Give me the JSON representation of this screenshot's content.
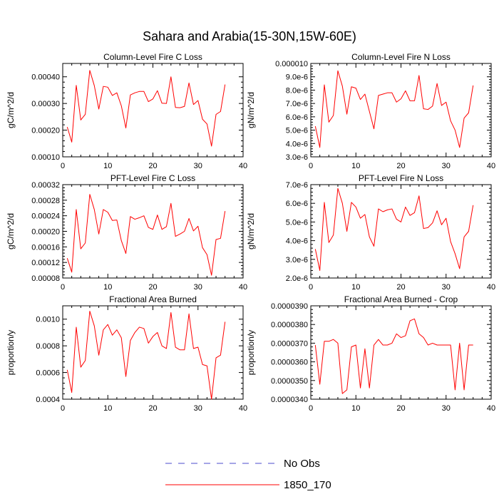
{
  "figure": {
    "title": "Sahara and Arabia(15-30N,15W-60E)"
  },
  "colors": {
    "series_line": "#ff0000",
    "no_obs_line": "#4b4bcc",
    "axis": "#000000"
  },
  "legend": {
    "placement": "bottom-center",
    "entries": [
      {
        "label": "No Obs",
        "style": "dashed",
        "color": "#4b4bcc"
      },
      {
        "label": "1850_170",
        "style": "solid",
        "color": "#ff0000"
      }
    ]
  },
  "chart_data": [
    {
      "type": "line",
      "title": "Column-Level Fire C Loss",
      "ylabel": "gC/m^2/d",
      "xlim": [
        0,
        40
      ],
      "ylim": [
        0.0001,
        0.00045
      ],
      "xticks": [
        0,
        10,
        20,
        30,
        40
      ],
      "xtick_labels": [
        "0",
        "10",
        "20",
        "30",
        "40"
      ],
      "yticks": [
        0.0001,
        0.0002,
        0.0003,
        0.0004
      ],
      "ytick_labels": [
        "0.00010",
        "0.00020",
        "0.00030",
        "0.00040"
      ],
      "series": [
        {
          "name": "1850_170",
          "x": [
            1,
            2,
            3,
            4,
            5,
            6,
            7,
            8,
            9,
            10,
            11,
            12,
            13,
            14,
            15,
            16,
            17,
            18,
            19,
            20,
            21,
            22,
            23,
            24,
            25,
            26,
            27,
            28,
            29,
            30,
            31,
            32,
            33,
            34,
            35,
            36
          ],
          "y": [
            0.000212,
            0.000155,
            0.000368,
            0.000238,
            0.000259,
            0.000424,
            0.000367,
            0.000279,
            0.000364,
            0.000361,
            0.00033,
            0.00034,
            0.000291,
            0.000208,
            0.000332,
            0.00034,
            0.000345,
            0.000345,
            0.000307,
            0.000317,
            0.000348,
            0.000301,
            0.0003,
            0.0004,
            0.000285,
            0.000284,
            0.000289,
            0.000377,
            0.000296,
            0.000311,
            0.000241,
            0.000223,
            0.00014,
            0.000259,
            0.00027,
            0.000371
          ]
        }
      ]
    },
    {
      "type": "line",
      "title": "Column-Level Fire N Loss",
      "ylabel": "gN/m^2/d",
      "xlim": [
        0,
        40
      ],
      "ylim": [
        3e-06,
        1e-05
      ],
      "xticks": [
        0,
        10,
        20,
        30,
        40
      ],
      "xtick_labels": [
        "0",
        "10",
        "20",
        "30",
        "40"
      ],
      "yticks": [
        3e-06,
        4e-06,
        5e-06,
        6e-06,
        7e-06,
        8e-06,
        9e-06,
        1e-05
      ],
      "ytick_labels": [
        "3.0e-6",
        "4.0e-6",
        "5.0e-6",
        "6.0e-6",
        "7.0e-6",
        "8.0e-6",
        "9.0e-6",
        "0.000010"
      ],
      "series": [
        {
          "name": "1850_170",
          "x": [
            1,
            2,
            3,
            4,
            5,
            6,
            7,
            8,
            9,
            10,
            11,
            12,
            13,
            14,
            15,
            16,
            17,
            18,
            19,
            20,
            21,
            22,
            23,
            24,
            25,
            26,
            27,
            28,
            29,
            30,
            31,
            32,
            33,
            34,
            35,
            36
          ],
          "y": [
            5.3e-06,
            3.7e-06,
            8.4e-06,
            5.6e-06,
            6.1e-06,
            9.45e-06,
            8.3e-06,
            6.2e-06,
            8.25e-06,
            8.15e-06,
            7.3e-06,
            7.7e-06,
            6.4e-06,
            5.1e-06,
            7.6e-06,
            7.7e-06,
            7.8e-06,
            7.8e-06,
            7.1e-06,
            7.35e-06,
            7.95e-06,
            7.2e-06,
            7.2e-06,
            9.1e-06,
            6.6e-06,
            6.55e-06,
            6.8e-06,
            8.5e-06,
            6.85e-06,
            7.1e-06,
            5.7e-06,
            5e-06,
            3.7e-06,
            5.9e-06,
            6.3e-06,
            8.35e-06
          ]
        }
      ]
    },
    {
      "type": "line",
      "title": "PFT-Level Fire C Loss",
      "ylabel": "gC/m^2/d",
      "xlim": [
        0,
        40
      ],
      "ylim": [
        8e-05,
        0.00032
      ],
      "xticks": [
        0,
        10,
        20,
        30,
        40
      ],
      "xtick_labels": [
        "0",
        "10",
        "20",
        "30",
        "40"
      ],
      "yticks": [
        8e-05,
        0.00012,
        0.00016,
        0.0002,
        0.00024,
        0.00028,
        0.00032
      ],
      "ytick_labels": [
        "0.00008",
        "0.00012",
        "0.00016",
        "0.00020",
        "0.00024",
        "0.00028",
        "0.00032"
      ],
      "series": [
        {
          "name": "1850_170",
          "x": [
            1,
            2,
            3,
            4,
            5,
            6,
            7,
            8,
            9,
            10,
            11,
            12,
            13,
            14,
            15,
            16,
            17,
            18,
            19,
            20,
            21,
            22,
            23,
            24,
            25,
            26,
            27,
            28,
            29,
            30,
            31,
            32,
            33,
            34,
            35,
            36
          ],
          "y": [
            0.000131,
            9.5e-05,
            0.000256,
            0.000155,
            0.00017,
            0.000295,
            0.000256,
            0.000193,
            0.000256,
            0.000249,
            0.000228,
            0.000229,
            0.000176,
            0.000143,
            0.000238,
            0.000231,
            0.000235,
            0.00024,
            0.00021,
            0.000205,
            0.000242,
            0.000205,
            0.000212,
            0.000272,
            0.000187,
            0.000193,
            0.0002,
            0.000233,
            0.000201,
            0.000213,
            0.000158,
            0.00014,
            8.7e-05,
            0.000179,
            0.000182,
            0.000252
          ]
        }
      ]
    },
    {
      "type": "line",
      "title": "PFT-Level Fire N Loss",
      "ylabel": "gN/m^2/d",
      "xlim": [
        0,
        40
      ],
      "ylim": [
        2e-06,
        7e-06
      ],
      "xticks": [
        0,
        10,
        20,
        30,
        40
      ],
      "xtick_labels": [
        "0",
        "10",
        "20",
        "30",
        "40"
      ],
      "yticks": [
        2e-06,
        3e-06,
        4e-06,
        5e-06,
        6e-06,
        7e-06
      ],
      "ytick_labels": [
        "2.0e-6",
        "3.0e-6",
        "4.0e-6",
        "5.0e-6",
        "6.0e-6",
        "7.0e-6"
      ],
      "series": [
        {
          "name": "1850_170",
          "x": [
            1,
            2,
            3,
            4,
            5,
            6,
            7,
            8,
            9,
            10,
            11,
            12,
            13,
            14,
            15,
            16,
            17,
            18,
            19,
            20,
            21,
            22,
            23,
            24,
            25,
            26,
            27,
            28,
            29,
            30,
            31,
            32,
            33,
            34,
            35,
            36
          ],
          "y": [
            3.55e-06,
            2.4e-06,
            6.05e-06,
            3.9e-06,
            4.3e-06,
            6.8e-06,
            6e-06,
            4.5e-06,
            6.05e-06,
            5.8e-06,
            5.2e-06,
            5.4e-06,
            4.2e-06,
            3.7e-06,
            5.7e-06,
            5.55e-06,
            5.65e-06,
            5.7e-06,
            5.15e-06,
            5e-06,
            5.8e-06,
            5.35e-06,
            5.5e-06,
            6.4e-06,
            4.65e-06,
            4.7e-06,
            4.95e-06,
            5.6e-06,
            4.85e-06,
            5.2e-06,
            3.95e-06,
            3.3e-06,
            2.5e-06,
            4.2e-06,
            4.5e-06,
            5.9e-06
          ]
        }
      ]
    },
    {
      "type": "line",
      "title": "Fractional Area Burned",
      "ylabel": "proportion/y",
      "xlim": [
        0,
        40
      ],
      "ylim": [
        0.0004,
        0.0011
      ],
      "xticks": [
        0,
        10,
        20,
        30,
        40
      ],
      "xtick_labels": [
        "0",
        "10",
        "20",
        "30",
        "40"
      ],
      "yticks": [
        0.0004,
        0.0006,
        0.0008,
        0.001
      ],
      "ytick_labels": [
        "0.0004",
        "0.0006",
        "0.0008",
        "0.0010"
      ],
      "series": [
        {
          "name": "1850_170",
          "x": [
            1,
            2,
            3,
            4,
            5,
            6,
            7,
            8,
            9,
            10,
            11,
            12,
            13,
            14,
            15,
            16,
            17,
            18,
            19,
            20,
            21,
            22,
            23,
            24,
            25,
            26,
            27,
            28,
            29,
            30,
            31,
            32,
            33,
            34,
            35,
            36
          ],
          "y": [
            0.00062,
            0.00045,
            0.00094,
            0.00064,
            0.00069,
            0.00106,
            0.00095,
            0.00073,
            0.00092,
            0.00096,
            0.00088,
            0.00092,
            0.00086,
            0.00057,
            0.00084,
            0.0009,
            0.00094,
            0.00093,
            0.00082,
            0.00087,
            0.0009,
            0.0008,
            0.00078,
            0.00105,
            0.00079,
            0.00077,
            0.00077,
            0.00104,
            0.00078,
            0.00079,
            0.00066,
            0.00065,
            0.0004,
            0.00071,
            0.00073,
            0.00098
          ]
        }
      ]
    },
    {
      "type": "line",
      "title": "Fractional Area Burned - Crop",
      "ylabel": "proportion/y",
      "xlim": [
        0,
        40
      ],
      "ylim": [
        3.4e-05,
        3.9e-05
      ],
      "xticks": [
        0,
        10,
        20,
        30,
        40
      ],
      "xtick_labels": [
        "0",
        "10",
        "20",
        "30",
        "40"
      ],
      "yticks": [
        3.4e-05,
        3.5e-05,
        3.6e-05,
        3.7e-05,
        3.8e-05,
        3.9e-05
      ],
      "ytick_labels": [
        "0.0000340",
        "0.0000350",
        "0.0000360",
        "0.0000370",
        "0.0000380",
        "0.0000390"
      ],
      "series": [
        {
          "name": "1850_170",
          "x": [
            1,
            2,
            3,
            4,
            5,
            6,
            7,
            8,
            9,
            10,
            11,
            12,
            13,
            14,
            15,
            16,
            17,
            18,
            19,
            20,
            21,
            22,
            23,
            24,
            25,
            26,
            27,
            28,
            29,
            30,
            31,
            32,
            33,
            34,
            35,
            36
          ],
          "y": [
            3.69e-05,
            3.48e-05,
            3.71e-05,
            3.71e-05,
            3.72e-05,
            3.7e-05,
            3.43e-05,
            3.45e-05,
            3.68e-05,
            3.69e-05,
            3.46e-05,
            3.67e-05,
            3.46e-05,
            3.69e-05,
            3.72e-05,
            3.69e-05,
            3.69e-05,
            3.7e-05,
            3.75e-05,
            3.73e-05,
            3.74e-05,
            3.82e-05,
            3.83e-05,
            3.75e-05,
            3.73e-05,
            3.69e-05,
            3.7e-05,
            3.69e-05,
            3.69e-05,
            3.69e-05,
            3.69e-05,
            3.45e-05,
            3.7e-05,
            3.45e-05,
            3.69e-05,
            3.69e-05
          ]
        }
      ]
    }
  ]
}
